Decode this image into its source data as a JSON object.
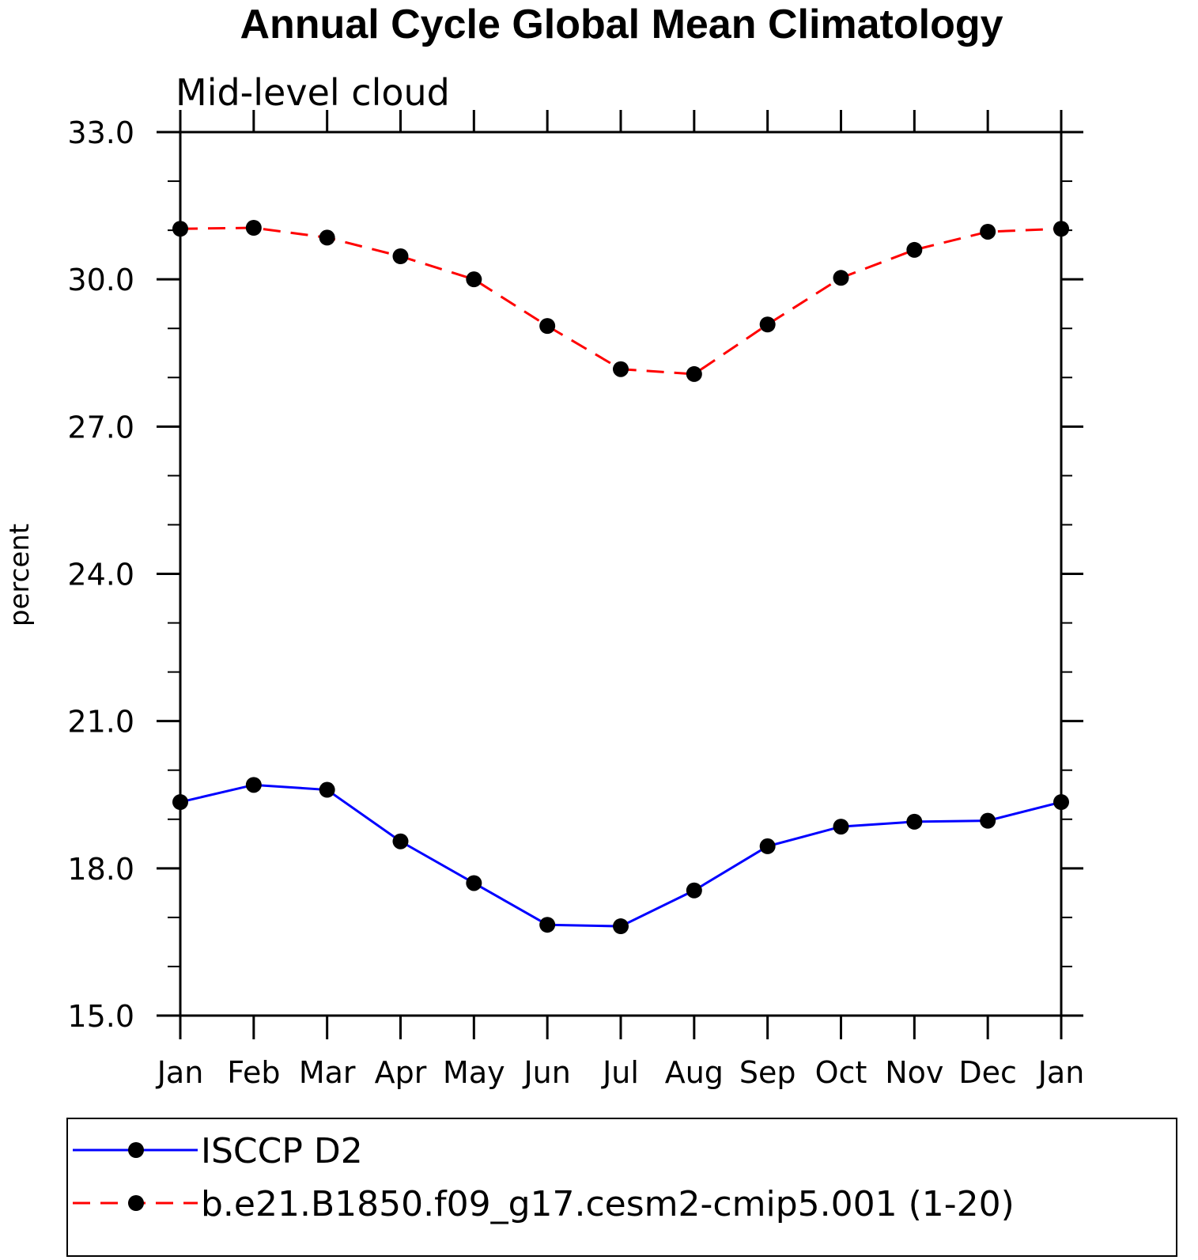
{
  "chart_data": {
    "type": "line",
    "title": "Annual Cycle Global Mean Climatology",
    "subtitle": "Mid-level cloud",
    "xlabel": "",
    "ylabel": "percent",
    "categories": [
      "Jan",
      "Feb",
      "Mar",
      "Apr",
      "May",
      "Jun",
      "Jul",
      "Aug",
      "Sep",
      "Oct",
      "Nov",
      "Dec",
      "Jan"
    ],
    "ylim": [
      15.0,
      33.0
    ],
    "yticks": [
      "15.0",
      "18.0",
      "21.0",
      "24.0",
      "27.0",
      "30.0",
      "33.0"
    ],
    "grid": false,
    "legend_placement": "bottom",
    "series": [
      {
        "name": "ISCCP D2",
        "color": "#0000ff",
        "line_style": "solid",
        "marker": "filled-circle",
        "values": [
          19.35,
          19.7,
          19.6,
          18.55,
          17.7,
          16.85,
          16.82,
          17.55,
          18.45,
          18.85,
          18.95,
          18.97,
          19.35
        ]
      },
      {
        "name": "b.e21.B1850.f09_g17.cesm2-cmip5.001 (1-20)",
        "color": "#ff0000",
        "line_style": "dashed",
        "marker": "filled-circle",
        "values": [
          31.03,
          31.05,
          30.85,
          30.47,
          30.0,
          29.05,
          28.17,
          28.07,
          29.08,
          30.03,
          30.6,
          30.97,
          31.03
        ]
      }
    ]
  }
}
